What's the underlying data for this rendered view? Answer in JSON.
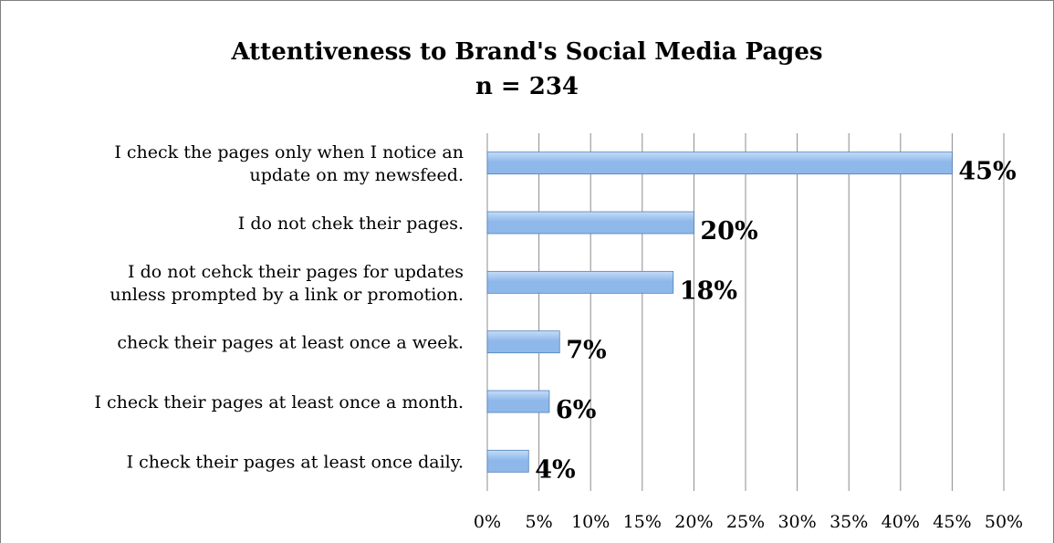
{
  "chart_data": {
    "type": "bar",
    "orientation": "horizontal",
    "title": "Attentiveness to Brand's Social Media Pages",
    "subtitle": "n = 234",
    "categories": [
      [
        "I check the pages only when I notice an",
        "update on my newsfeed."
      ],
      [
        "I do not chek their pages."
      ],
      [
        "I do not cehck their pages for updates",
        "unless prompted by a link or promotion."
      ],
      [
        "check their pages at least once a week."
      ],
      [
        "I check their pages at least once a month."
      ],
      [
        "I check their pages at least once daily."
      ]
    ],
    "values": [
      45,
      20,
      18,
      7,
      6,
      4
    ],
    "data_labels": [
      "45%",
      "20%",
      "18%",
      "7%",
      "6%",
      "4%"
    ],
    "xlim": [
      0,
      50
    ],
    "x_ticks": [
      "0%",
      "5%",
      "10%",
      "15%",
      "20%",
      "25%",
      "30%",
      "35%",
      "40%",
      "45%",
      "50%"
    ],
    "grid": true,
    "legend": "none",
    "colors": {
      "bar_fill": "#8fb8ea",
      "bar_highlight": "#c5dcf7",
      "bar_stroke": "#4f81bd",
      "grid": "#8c8c8c",
      "text": "#000000"
    }
  }
}
